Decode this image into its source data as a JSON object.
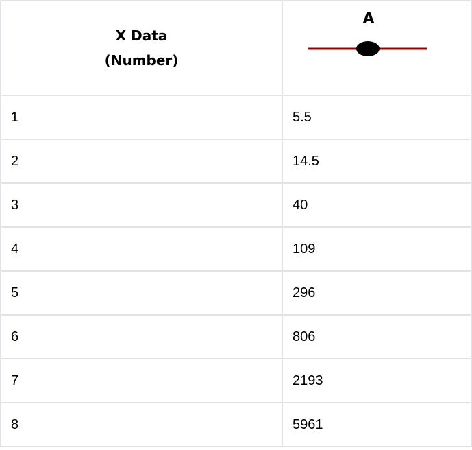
{
  "table": {
    "headers": [
      {
        "line1": "X Data",
        "line2": "(Number)"
      },
      {
        "series_name": "A",
        "legend": {
          "line_color": "#990000",
          "marker": "filled-ellipse",
          "marker_color": "#000000"
        }
      }
    ],
    "rows": [
      {
        "x": "1",
        "a": "5.5"
      },
      {
        "x": "2",
        "a": "14.5"
      },
      {
        "x": "3",
        "a": "40"
      },
      {
        "x": "4",
        "a": "109"
      },
      {
        "x": "5",
        "a": "296"
      },
      {
        "x": "6",
        "a": "806"
      },
      {
        "x": "7",
        "a": "2193"
      },
      {
        "x": "8",
        "a": "5961"
      }
    ]
  }
}
